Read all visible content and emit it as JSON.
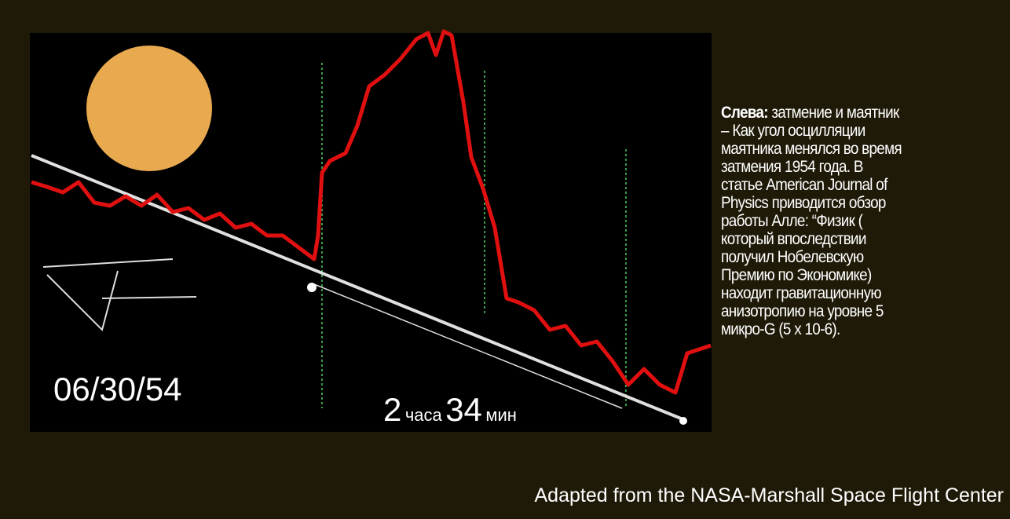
{
  "figure": {
    "date": "06/30/54",
    "duration": {
      "hours": "2",
      "hours_unit": "часа",
      "minutes": "34",
      "minutes_unit": "мин"
    }
  },
  "caption": {
    "lead": "Слева:",
    "lines": [
      "затмение и маятник",
      "– Как угол осцилляции",
      "маятника менялся во время",
      "затмения 1954 года. В",
      "статье American Journal of",
      "Physics приводится обзор",
      "работы Алле: “Физик (",
      "который впоследствии",
      "получил Нобелевскую",
      "Премию по Экономике)",
      "находит гравитационную",
      "анизотропию на уровне 5",
      "микро-G (5 x 10-6)."
    ]
  },
  "footer": "Adapted from the NASA-Marshall Space Flight Center"
}
